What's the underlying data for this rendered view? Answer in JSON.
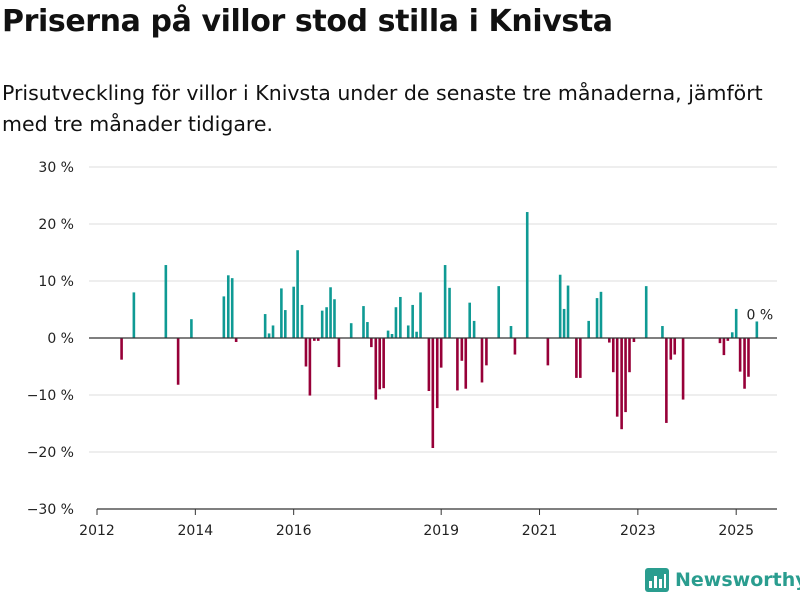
{
  "title": "Priserna på villor stod stilla i Knivsta",
  "subtitle": "Prisutveckling för villor i Knivsta under de senaste tre månaderna, jämfört med tre månader tidigare.",
  "brand": "Newsworthy",
  "colors": {
    "positive": "#0f9a94",
    "negative": "#970038",
    "brand": "#2a9d8f"
  },
  "chart_data": {
    "type": "bar",
    "ylim": [
      -30,
      30
    ],
    "yticks": [
      30,
      20,
      10,
      0,
      -10,
      -20,
      -30
    ],
    "ytick_labels": [
      "30 %",
      "20 %",
      "10 %",
      "0 %",
      "−10 %",
      "−20 %",
      "−30 %"
    ],
    "xlim": [
      2012.0,
      2025.83
    ],
    "xticks": [
      2012,
      2014,
      2016,
      2019,
      2021,
      2023,
      2025
    ],
    "xtick_labels": [
      "2012",
      "2014",
      "2016",
      "2019",
      "2021",
      "2023",
      "2025"
    ],
    "grid": true,
    "last_value_label": "0 %",
    "points": [
      {
        "x": 2012.5,
        "y": -3.8
      },
      {
        "x": 2012.75,
        "y": 8.0
      },
      {
        "x": 2013.4,
        "y": 12.8
      },
      {
        "x": 2013.65,
        "y": -8.2
      },
      {
        "x": 2013.92,
        "y": 3.3
      },
      {
        "x": 2014.58,
        "y": 7.3
      },
      {
        "x": 2014.67,
        "y": 11.0
      },
      {
        "x": 2014.75,
        "y": 10.5
      },
      {
        "x": 2014.83,
        "y": -0.7
      },
      {
        "x": 2015.42,
        "y": 4.2
      },
      {
        "x": 2015.5,
        "y": 0.8
      },
      {
        "x": 2015.58,
        "y": 2.2
      },
      {
        "x": 2015.75,
        "y": 8.7
      },
      {
        "x": 2015.83,
        "y": 4.9
      },
      {
        "x": 2016.0,
        "y": 9.0
      },
      {
        "x": 2016.08,
        "y": 15.4
      },
      {
        "x": 2016.17,
        "y": 5.8
      },
      {
        "x": 2016.25,
        "y": -5.0
      },
      {
        "x": 2016.33,
        "y": -10.1
      },
      {
        "x": 2016.42,
        "y": -0.5
      },
      {
        "x": 2016.5,
        "y": -0.5
      },
      {
        "x": 2016.58,
        "y": 4.8
      },
      {
        "x": 2016.67,
        "y": 5.4
      },
      {
        "x": 2016.75,
        "y": 8.9
      },
      {
        "x": 2016.83,
        "y": 6.8
      },
      {
        "x": 2016.92,
        "y": -5.1
      },
      {
        "x": 2017.17,
        "y": 2.6
      },
      {
        "x": 2017.42,
        "y": 5.6
      },
      {
        "x": 2017.5,
        "y": 2.8
      },
      {
        "x": 2017.58,
        "y": -1.6
      },
      {
        "x": 2017.67,
        "y": -10.8
      },
      {
        "x": 2017.75,
        "y": -9.0
      },
      {
        "x": 2017.83,
        "y": -8.8
      },
      {
        "x": 2017.92,
        "y": 1.3
      },
      {
        "x": 2018.0,
        "y": 0.7
      },
      {
        "x": 2018.08,
        "y": 5.4
      },
      {
        "x": 2018.17,
        "y": 7.2
      },
      {
        "x": 2018.33,
        "y": 2.2
      },
      {
        "x": 2018.42,
        "y": 5.8
      },
      {
        "x": 2018.5,
        "y": 1.1
      },
      {
        "x": 2018.58,
        "y": 8.0
      },
      {
        "x": 2018.75,
        "y": -9.3
      },
      {
        "x": 2018.83,
        "y": -19.3
      },
      {
        "x": 2018.92,
        "y": -12.3
      },
      {
        "x": 2019.0,
        "y": -5.2
      },
      {
        "x": 2019.08,
        "y": 12.8
      },
      {
        "x": 2019.17,
        "y": 8.8
      },
      {
        "x": 2019.33,
        "y": -9.2
      },
      {
        "x": 2019.42,
        "y": -4.0
      },
      {
        "x": 2019.5,
        "y": -8.9
      },
      {
        "x": 2019.58,
        "y": 6.2
      },
      {
        "x": 2019.67,
        "y": 3.0
      },
      {
        "x": 2019.83,
        "y": -7.8
      },
      {
        "x": 2019.92,
        "y": -4.8
      },
      {
        "x": 2020.17,
        "y": 9.1
      },
      {
        "x": 2020.42,
        "y": 2.1
      },
      {
        "x": 2020.5,
        "y": -2.9
      },
      {
        "x": 2020.75,
        "y": 22.1
      },
      {
        "x": 2021.17,
        "y": -4.8
      },
      {
        "x": 2021.42,
        "y": 11.1
      },
      {
        "x": 2021.5,
        "y": 5.1
      },
      {
        "x": 2021.58,
        "y": 9.2
      },
      {
        "x": 2021.75,
        "y": -7.0
      },
      {
        "x": 2021.83,
        "y": -7.0
      },
      {
        "x": 2022.0,
        "y": 3.0
      },
      {
        "x": 2022.17,
        "y": 7.0
      },
      {
        "x": 2022.25,
        "y": 8.1
      },
      {
        "x": 2022.42,
        "y": -0.8
      },
      {
        "x": 2022.5,
        "y": -6.0
      },
      {
        "x": 2022.58,
        "y": -13.8
      },
      {
        "x": 2022.67,
        "y": -16.0
      },
      {
        "x": 2022.75,
        "y": -13.0
      },
      {
        "x": 2022.83,
        "y": -6.0
      },
      {
        "x": 2022.92,
        "y": -0.7
      },
      {
        "x": 2023.17,
        "y": 9.1
      },
      {
        "x": 2023.5,
        "y": 2.1
      },
      {
        "x": 2023.58,
        "y": -14.9
      },
      {
        "x": 2023.67,
        "y": -3.8
      },
      {
        "x": 2023.75,
        "y": -2.9
      },
      {
        "x": 2023.92,
        "y": -10.8
      },
      {
        "x": 2024.67,
        "y": -0.9
      },
      {
        "x": 2024.75,
        "y": -3.0
      },
      {
        "x": 2024.83,
        "y": -0.5
      },
      {
        "x": 2024.92,
        "y": 1.0
      },
      {
        "x": 2025.0,
        "y": 5.1
      },
      {
        "x": 2025.08,
        "y": -5.9
      },
      {
        "x": 2025.17,
        "y": -8.9
      },
      {
        "x": 2025.25,
        "y": -6.8
      },
      {
        "x": 2025.42,
        "y": 2.9
      }
    ]
  }
}
